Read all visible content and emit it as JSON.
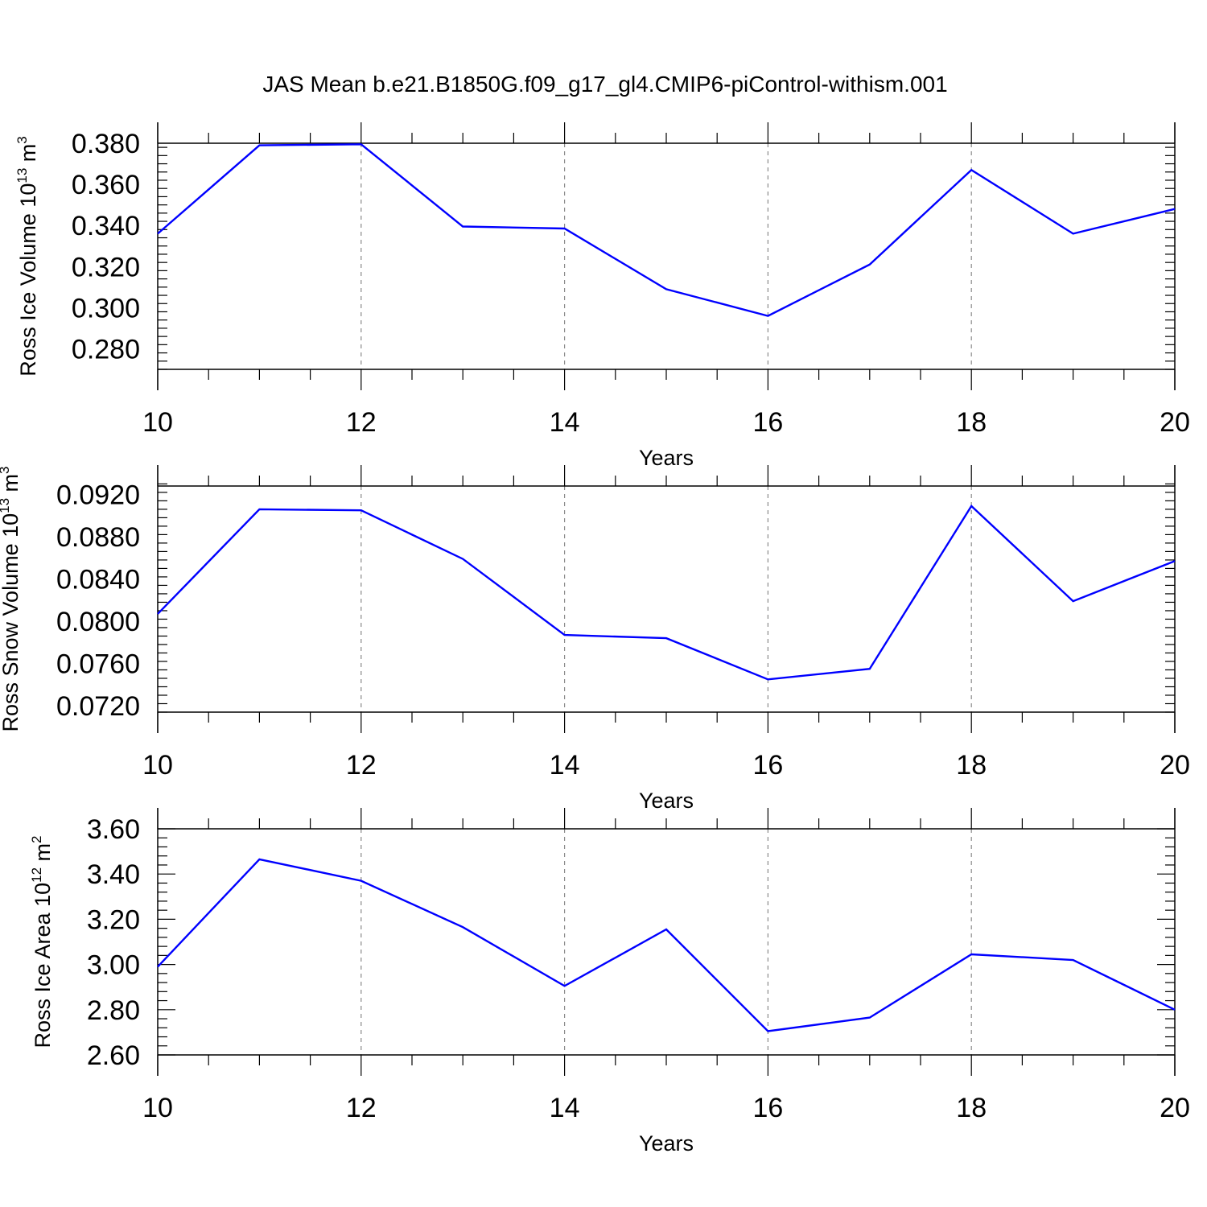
{
  "title": "JAS Mean b.e21.B1850G.f09_g17_gl4.CMIP6-piControl-withism.001",
  "colors": {
    "line": "#0000ff",
    "axis": "#000000",
    "grid": "#8a8a8a"
  },
  "chart_data": [
    {
      "type": "line",
      "title": "JAS Mean b.e21.B1850G.f09_g17_gl4.CMIP6-piControl-withism.001",
      "xlabel": "Years",
      "ylabel": {
        "text": "Ross Ice Volume 10",
        "exp": "13",
        "unit": " m",
        "unit_exp": "3"
      },
      "xlim": [
        10,
        20
      ],
      "ylim": [
        0.27,
        0.38
      ],
      "x_ticks": [
        10,
        12,
        14,
        16,
        18,
        20
      ],
      "x_tick_labels": [
        "10",
        "12",
        "14",
        "16",
        "18",
        "20"
      ],
      "y_ticks": [
        0.28,
        0.3,
        0.32,
        0.34,
        0.36,
        0.38
      ],
      "y_tick_labels": [
        "0.280",
        "0.300",
        "0.320",
        "0.340",
        "0.360",
        "0.380"
      ],
      "y_minor_step": 0.004,
      "reference_line": 0.38,
      "grid": "vertical dashed at major x ticks",
      "x": [
        10,
        11,
        12,
        13,
        14,
        15,
        16,
        17,
        18,
        19,
        20
      ],
      "series": [
        {
          "values": [
            0.336,
            0.379,
            0.3795,
            0.3395,
            0.3385,
            0.309,
            0.296,
            0.321,
            0.367,
            0.336,
            0.348
          ]
        }
      ]
    },
    {
      "type": "line",
      "xlabel": "Years",
      "ylabel": {
        "text": "Ross Snow Volume 10",
        "exp": "13",
        "unit": " m",
        "unit_exp": "3"
      },
      "xlim": [
        10,
        20
      ],
      "ylim": [
        0.0714,
        0.0928
      ],
      "x_ticks": [
        10,
        12,
        14,
        16,
        18,
        20
      ],
      "x_tick_labels": [
        "10",
        "12",
        "14",
        "16",
        "18",
        "20"
      ],
      "y_ticks": [
        0.072,
        0.076,
        0.08,
        0.084,
        0.088,
        0.092
      ],
      "y_tick_labels": [
        "0.0720",
        "0.0760",
        "0.0800",
        "0.0840",
        "0.0880",
        "0.0920"
      ],
      "y_minor_step": 0.0008,
      "reference_line": 0.0928,
      "grid": "vertical dashed at major x ticks",
      "x": [
        10,
        11,
        12,
        13,
        14,
        15,
        16,
        17,
        18,
        19,
        20
      ],
      "series": [
        {
          "values": [
            0.0807,
            0.0906,
            0.0905,
            0.0859,
            0.0787,
            0.0784,
            0.0745,
            0.0755,
            0.0909,
            0.0819,
            0.0857
          ]
        }
      ]
    },
    {
      "type": "line",
      "xlabel": "Years",
      "ylabel": {
        "text": "Ross Ice Area 10",
        "exp": "12",
        "unit": " m",
        "unit_exp": "2"
      },
      "xlim": [
        10,
        20
      ],
      "ylim": [
        2.6,
        3.6
      ],
      "x_ticks": [
        10,
        12,
        14,
        16,
        18,
        20
      ],
      "x_tick_labels": [
        "10",
        "12",
        "14",
        "16",
        "18",
        "20"
      ],
      "y_ticks": [
        2.6,
        2.8,
        3.0,
        3.2,
        3.4,
        3.6
      ],
      "y_tick_labels": [
        "2.60",
        "2.80",
        "3.00",
        "3.20",
        "3.40",
        "3.60"
      ],
      "y_minor_step": 0.04,
      "reference_line": 3.6,
      "grid": "vertical dashed at major x ticks",
      "x": [
        10,
        11,
        12,
        13,
        14,
        15,
        16,
        17,
        18,
        19,
        20
      ],
      "series": [
        {
          "values": [
            2.99,
            3.465,
            3.37,
            3.165,
            2.905,
            3.155,
            2.705,
            2.765,
            3.045,
            3.02,
            2.8
          ]
        }
      ]
    }
  ]
}
